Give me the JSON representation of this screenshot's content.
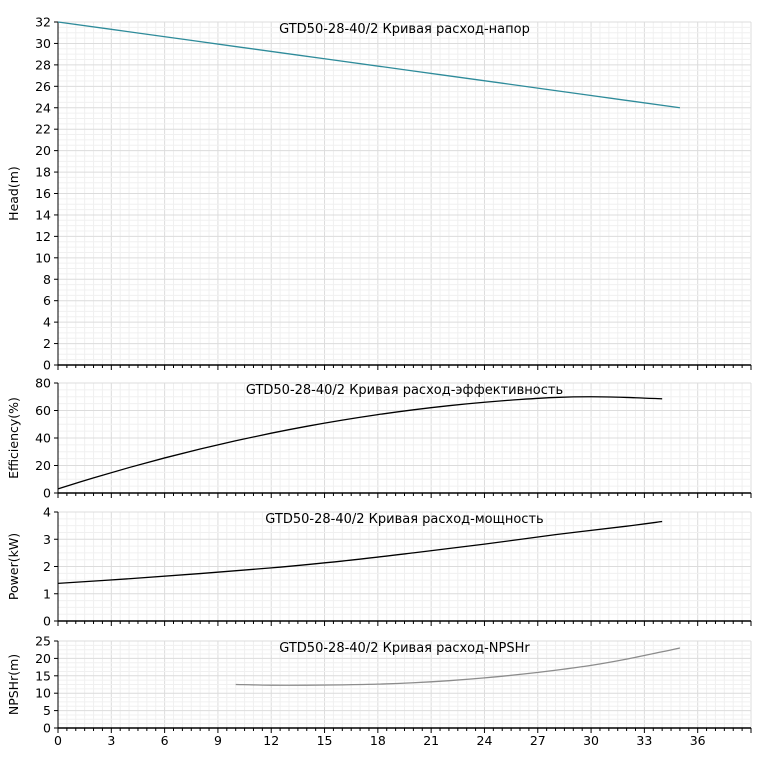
{
  "chart_data": [
    {
      "type": "line",
      "title": "GTD50-28-40/2 Кривая расход-напор",
      "xlabel": "",
      "ylabel": "Head(m)",
      "xlim": [
        0,
        39
      ],
      "ylim": [
        0,
        32
      ],
      "yticks": [
        0,
        2,
        4,
        6,
        8,
        10,
        12,
        14,
        16,
        18,
        20,
        22,
        24,
        26,
        28,
        30,
        32
      ],
      "grid": true,
      "color": "#2e8b9a",
      "series": [
        {
          "x": [
            0,
            5,
            10,
            15,
            20,
            25,
            30,
            35
          ],
          "y": [
            32,
            30.86,
            29.71,
            28.57,
            27.43,
            26.29,
            25.14,
            24
          ]
        }
      ]
    },
    {
      "type": "line",
      "title": "GTD50-28-40/2 Кривая расход-эффективность",
      "xlabel": "",
      "ylabel": "Efficiency(%)",
      "xlim": [
        0,
        39
      ],
      "ylim": [
        0,
        80
      ],
      "yticks": [
        0,
        20,
        40,
        60,
        80
      ],
      "grid": true,
      "color": "#000000",
      "series": [
        {
          "x": [
            0,
            2,
            4,
            6,
            8,
            10,
            12,
            14,
            16,
            18,
            20,
            22,
            24,
            26,
            28,
            30,
            32,
            34
          ],
          "y": [
            3,
            11,
            18.5,
            25.5,
            32,
            38,
            43.5,
            48.5,
            53,
            57,
            60.5,
            63.5,
            66,
            68,
            69.5,
            70,
            69.5,
            68.5
          ]
        }
      ]
    },
    {
      "type": "line",
      "title": "GTD50-28-40/2 Кривая расход-мощность",
      "xlabel": "",
      "ylabel": "Power(kW)",
      "xlim": [
        0,
        39
      ],
      "ylim": [
        0,
        4
      ],
      "yticks": [
        0,
        1,
        2,
        3,
        4
      ],
      "grid": true,
      "color": "#000000",
      "series": [
        {
          "x": [
            0,
            4,
            8,
            12,
            16,
            20,
            24,
            28,
            32,
            34
          ],
          "y": [
            1.38,
            1.55,
            1.74,
            1.95,
            2.2,
            2.5,
            2.82,
            3.17,
            3.48,
            3.65
          ]
        }
      ]
    },
    {
      "type": "line",
      "title": "GTD50-28-40/2 Кривая расход-NPSHr",
      "xlabel": "",
      "ylabel": "NPSHr(m)",
      "xlim": [
        0,
        39
      ],
      "ylim": [
        0,
        25
      ],
      "yticks": [
        0,
        5,
        10,
        15,
        20,
        25
      ],
      "xticks": [
        0,
        3,
        6,
        9,
        12,
        15,
        18,
        21,
        24,
        27,
        30,
        33,
        36
      ],
      "grid": true,
      "color": "#8c8c8c",
      "series": [
        {
          "x": [
            10,
            12,
            14,
            16,
            18,
            20,
            22,
            24,
            26,
            28,
            30,
            32,
            34,
            35
          ],
          "y": [
            12.5,
            12.3,
            12.3,
            12.4,
            12.6,
            13,
            13.6,
            14.4,
            15.4,
            16.6,
            18,
            19.8,
            21.9,
            23
          ]
        }
      ]
    }
  ]
}
